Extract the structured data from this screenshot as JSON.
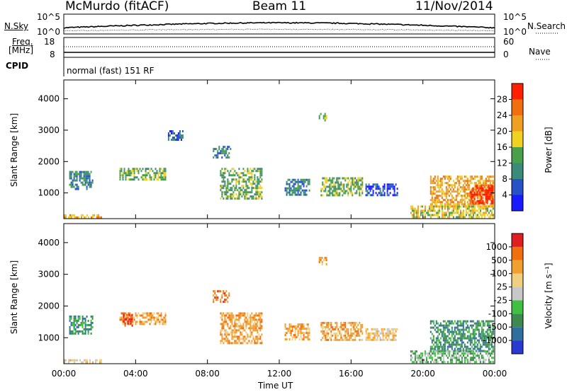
{
  "header": {
    "station": "McMurdo (fitACF)",
    "beam": "Beam 11",
    "date": "11/Nov/2014"
  },
  "aux": {
    "nsky_label": "N.Sky",
    "nsearch_label": "N.Search",
    "freq_label_1": "Freq.",
    "freq_label_2": "[MHz]",
    "nave_label": "Nave",
    "cpid_label": "CPID",
    "cpid_text": "normal (fast) 151 RF",
    "noise_ticks_left": [
      "10^5",
      "10^0"
    ],
    "noise_ticks_right": [
      "10^5",
      "10^0"
    ],
    "freq_ticks_left": [
      "18",
      "8"
    ],
    "nave_ticks_right": [
      "60",
      "0"
    ]
  },
  "chart_data": [
    {
      "type": "heatmap",
      "name": "power",
      "ylabel": "Slant Range [km]",
      "xlabel": "",
      "yticks": [
        1000,
        2000,
        3000,
        4000
      ],
      "ylim": [
        180,
        4600
      ],
      "xticks": [
        "00:00",
        "04:00",
        "08:00",
        "12:00",
        "16:00",
        "20:00",
        "00:00"
      ],
      "xlim_hours": [
        0,
        24
      ],
      "colorbar": {
        "label": "Power [dB]",
        "ticks": [
          "4",
          "8",
          "12",
          "16",
          "20",
          "24",
          "28"
        ],
        "colors": [
          "#1a1aff",
          "#2850c8",
          "#3c8a78",
          "#4aa04a",
          "#f0d020",
          "#f0a020",
          "#f07010",
          "#ff2000"
        ]
      },
      "regions": [
        {
          "t0": 0.3,
          "t1": 1.6,
          "r0": 1150,
          "r1": 1700,
          "level": 2
        },
        {
          "t0": 3.1,
          "t1": 5.7,
          "r0": 1400,
          "r1": 1800,
          "level": 3
        },
        {
          "t0": 5.8,
          "t1": 6.6,
          "r0": 2700,
          "r1": 3000,
          "level": 1
        },
        {
          "t0": 8.3,
          "t1": 9.3,
          "r0": 2100,
          "r1": 2500,
          "level": 2
        },
        {
          "t0": 8.7,
          "t1": 11.0,
          "r0": 850,
          "r1": 1800,
          "level": 3
        },
        {
          "t0": 12.3,
          "t1": 13.7,
          "r0": 950,
          "r1": 1450,
          "level": 2
        },
        {
          "t0": 14.2,
          "t1": 14.6,
          "r0": 3300,
          "r1": 3550,
          "level": 3
        },
        {
          "t0": 14.3,
          "t1": 16.6,
          "r0": 950,
          "r1": 1500,
          "level": 3
        },
        {
          "t0": 16.8,
          "t1": 18.6,
          "r0": 900,
          "r1": 1300,
          "level": 1
        },
        {
          "t0": 20.4,
          "t1": 23.9,
          "r0": 600,
          "r1": 1550,
          "level": 5
        },
        {
          "t0": 22.6,
          "t1": 23.9,
          "r0": 650,
          "r1": 1250,
          "level": 7
        },
        {
          "t0": 19.3,
          "t1": 23.9,
          "r0": 250,
          "r1": 600,
          "level": 4
        },
        {
          "t0": 0.0,
          "t1": 2.1,
          "r0": 190,
          "r1": 320,
          "level": 5
        }
      ]
    },
    {
      "type": "heatmap",
      "name": "velocity",
      "ylabel": "Slant Range [km]",
      "xlabel": "Time UT",
      "yticks": [
        1000,
        2000,
        3000,
        4000
      ],
      "ylim": [
        180,
        4600
      ],
      "xticks": [
        "00:00",
        "04:00",
        "08:00",
        "12:00",
        "16:00",
        "20:00",
        "00:00"
      ],
      "xlim_hours": [
        0,
        24
      ],
      "colorbar": {
        "label": "Velocity [m s⁻¹]",
        "ticks": [
          "1000",
          "500",
          "100",
          "25",
          "-25",
          "-100",
          "-500",
          "-1000"
        ],
        "colors": [
          "#2a3ad0",
          "#2f6fa0",
          "#3c8a50",
          "#40c040",
          "#c8c8c8",
          "#f0d080",
          "#f0a030",
          "#f07010",
          "#e02020"
        ]
      },
      "regions": [
        {
          "t0": 0.3,
          "t1": 1.6,
          "r0": 1150,
          "r1": 1700,
          "level": 2
        },
        {
          "t0": 3.1,
          "t1": 5.7,
          "r0": 1400,
          "r1": 1800,
          "level": 6
        },
        {
          "t0": 3.3,
          "t1": 3.8,
          "r0": 1400,
          "r1": 1750,
          "level": 8
        },
        {
          "t0": 8.3,
          "t1": 9.2,
          "r0": 2100,
          "r1": 2500,
          "level": 7
        },
        {
          "t0": 8.7,
          "t1": 11.0,
          "r0": 850,
          "r1": 1800,
          "level": 6
        },
        {
          "t0": 12.3,
          "t1": 13.7,
          "r0": 950,
          "r1": 1450,
          "level": 6
        },
        {
          "t0": 14.2,
          "t1": 14.6,
          "r0": 3300,
          "r1": 3550,
          "level": 6
        },
        {
          "t0": 14.3,
          "t1": 16.6,
          "r0": 950,
          "r1": 1500,
          "level": 6
        },
        {
          "t0": 16.8,
          "t1": 18.6,
          "r0": 900,
          "r1": 1300,
          "level": 5
        },
        {
          "t0": 20.4,
          "t1": 23.9,
          "r0": 600,
          "r1": 1550,
          "level": 2
        },
        {
          "t0": 19.3,
          "t1": 23.9,
          "r0": 250,
          "r1": 600,
          "level": 3
        },
        {
          "t0": 0.0,
          "t1": 2.1,
          "r0": 190,
          "r1": 320,
          "level": 5
        }
      ]
    }
  ]
}
